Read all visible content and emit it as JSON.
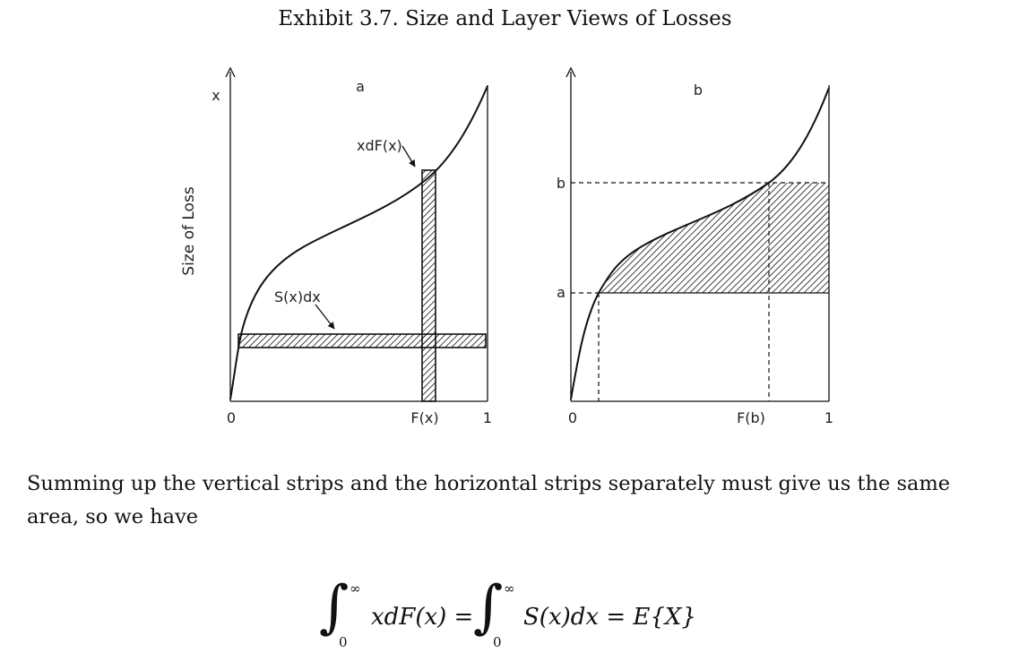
{
  "title": "Exhibit 3.7. Size and Layer Views of Losses",
  "figure": {
    "y_axis_label": "Size of Loss",
    "panel_a": {
      "label": "a",
      "axis_x": "x",
      "tick_0": "0",
      "tick_fx": "F(x)",
      "tick_1": "1",
      "annotation_vertical": "xdF(x)",
      "annotation_horizontal": "S(x)dx"
    },
    "panel_b": {
      "label": "b",
      "level_b": "b",
      "level_a": "a",
      "tick_0": "0",
      "tick_fb": "F(b)",
      "tick_1": "1"
    }
  },
  "paragraph": "Summing up the vertical strips and the horizontal strips separately must give us the same area, so we have",
  "equation": {
    "upper_1": "∞",
    "lower_1": "0",
    "integrand_1": "xdF(x) =",
    "upper_2": "∞",
    "lower_2": "0",
    "integrand_2": "S(x)dx = E{X}"
  }
}
